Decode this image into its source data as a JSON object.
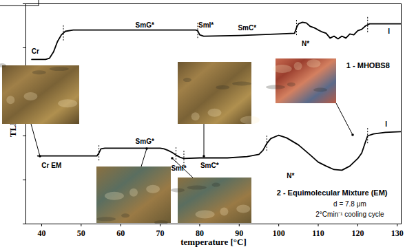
{
  "chart_data": {
    "type": "line",
    "xlabel": "temperature [°C]",
    "ylabel": "TLI [arb.u.]",
    "xlim": [
      36,
      131
    ],
    "xticks": [
      40,
      50,
      60,
      70,
      80,
      90,
      100,
      110,
      120,
      130
    ],
    "ylim": [
      0,
      10
    ],
    "yticks": [
      0,
      2,
      4,
      6,
      8,
      10
    ],
    "tick_labels": "x",
    "series": [
      {
        "name": "1 - MHOBS8",
        "color": "#000000",
        "name_x": 122.6,
        "name_y": 7.19,
        "x": [
          37.5,
          41,
          42,
          43,
          44,
          45,
          46,
          48,
          60,
          70,
          79,
          79.5,
          80,
          81,
          90,
          100,
          104,
          104.5,
          105,
          106,
          107,
          108,
          109,
          110,
          111,
          112,
          113,
          114,
          115,
          116,
          117,
          118,
          119,
          120,
          121,
          122,
          123,
          131
        ],
        "values": [
          7.47,
          7.47,
          7.53,
          7.81,
          8.28,
          8.59,
          8.75,
          8.81,
          8.81,
          8.81,
          8.81,
          8.78,
          8.59,
          8.53,
          8.56,
          8.63,
          8.66,
          8.91,
          9.09,
          9.16,
          9.13,
          8.97,
          8.91,
          8.81,
          8.72,
          8.66,
          8.44,
          8.53,
          8.41,
          8.53,
          8.44,
          8.63,
          8.59,
          8.78,
          8.84,
          9.0,
          9.09,
          9.09
        ],
        "transitions": [
          45.5,
          79.5,
          104.5,
          122.5
        ],
        "phases": [
          {
            "text": "Cr",
            "x": 38.4,
            "y": 7.85
          },
          {
            "text": "SmG*",
            "x": 66.1,
            "y": 9.03
          },
          {
            "text": "SmI*",
            "x": 81.6,
            "y": 9.03
          },
          {
            "text": "SmC*",
            "x": 92,
            "y": 8.9
          },
          {
            "text": "N*",
            "x": 106.8,
            "y": 8.19
          },
          {
            "text": "I",
            "x": 127.9,
            "y": 8.75
          }
        ]
      },
      {
        "name": "2 - Equimolecular Mixture (EM)",
        "color": "#000000",
        "name_x": 113.5,
        "name_y": 1.41,
        "x": [
          39,
          54,
          54.5,
          55,
          56,
          70,
          71,
          72,
          73,
          74,
          75,
          76,
          80,
          87,
          92,
          95,
          96,
          97,
          98,
          100,
          102,
          105,
          108,
          110,
          112,
          114,
          116,
          118,
          120,
          121,
          122,
          122.5,
          124,
          127,
          131
        ],
        "values": [
          3.09,
          3.09,
          3.22,
          3.41,
          3.44,
          3.44,
          3.41,
          3.34,
          3.25,
          3.13,
          3.03,
          2.97,
          3.0,
          3.0,
          3.06,
          3.16,
          3.34,
          3.66,
          3.88,
          4.03,
          3.91,
          3.59,
          3.13,
          2.81,
          2.63,
          2.47,
          2.44,
          2.63,
          2.97,
          3.22,
          3.75,
          4.0,
          4.09,
          4.16,
          4.19
        ],
        "transitions": [
          54.5,
          74,
          76,
          97,
          122.5
        ],
        "phases": [
          {
            "text": "Cr EM",
            "x": 42.5,
            "y": 2.66
          },
          {
            "text": "SmG*",
            "x": 66.1,
            "y": 3.75
          },
          {
            "text": "SmI*",
            "x": 74.7,
            "y": 2.53
          },
          {
            "text": "SmC*",
            "x": 82.5,
            "y": 2.66
          },
          {
            "text": "N*",
            "x": 103,
            "y": 2.19
          },
          {
            "text": "I",
            "x": 127.2,
            "y": 4.53
          }
        ]
      }
    ],
    "annotations": [
      {
        "text": "d = 7.8 μm",
        "x": 118,
        "y": 0.91
      },
      {
        "text": "2°Cmin⁻¹ cooling cycle",
        "x": 118,
        "y": 0.44
      }
    ]
  }
}
